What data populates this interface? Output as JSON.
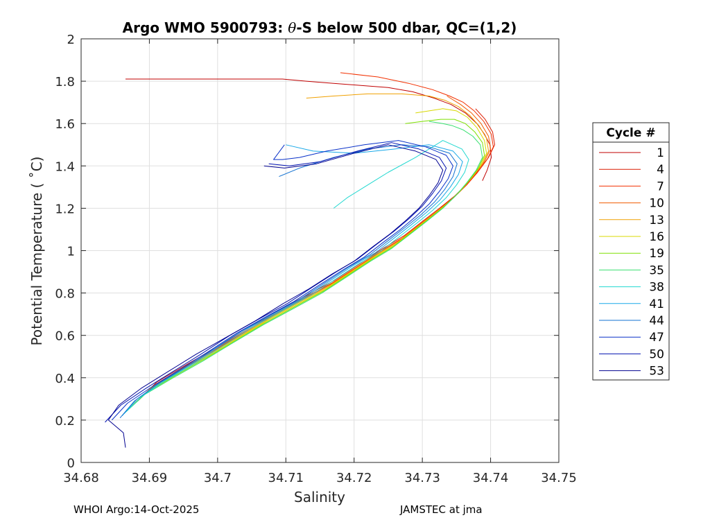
{
  "chart_data": {
    "type": "line",
    "title_prefix": "Argo WMO 5900793: ",
    "title_theta": "θ",
    "title_suffix": "-S below 500 dbar,  QC=(1,2)",
    "xlabel": "Salinity",
    "ylabel": "Potential Temperature ( ˚C)",
    "xlim": [
      34.68,
      34.75
    ],
    "ylim": [
      0,
      2
    ],
    "xticks": [
      34.68,
      34.69,
      34.7,
      34.71,
      34.72,
      34.73,
      34.74,
      34.75
    ],
    "xtick_labels": [
      "34.68",
      "34.69",
      "34.7",
      "34.71",
      "34.72",
      "34.73",
      "34.74",
      "34.75"
    ],
    "yticks": [
      0,
      0.2,
      0.4,
      0.6,
      0.8,
      1,
      1.2,
      1.4,
      1.6,
      1.8,
      2
    ],
    "ytick_labels": [
      "0",
      "0.2",
      "0.4",
      "0.6",
      "0.8",
      "1",
      "1.2",
      "1.4",
      "1.6",
      "1.8",
      "2"
    ],
    "grid": true,
    "legend": {
      "title": "Cycle #",
      "placement": "right-outside",
      "entries": [
        {
          "label": "1",
          "color": "#c00000"
        },
        {
          "label": "4",
          "color": "#dc1a00"
        },
        {
          "label": "7",
          "color": "#f23000"
        },
        {
          "label": "10",
          "color": "#f05a00"
        },
        {
          "label": "13",
          "color": "#f0a000"
        },
        {
          "label": "16",
          "color": "#d8d800"
        },
        {
          "label": "19",
          "color": "#7ee000"
        },
        {
          "label": "35",
          "color": "#38e070"
        },
        {
          "label": "38",
          "color": "#20d8d0"
        },
        {
          "label": "41",
          "color": "#18a8e8"
        },
        {
          "label": "44",
          "color": "#1070d0"
        },
        {
          "label": "47",
          "color": "#0830c8"
        },
        {
          "label": "50",
          "color": "#0010b0"
        },
        {
          "label": "53",
          "color": "#000090"
        }
      ]
    },
    "series": [
      {
        "name": "1",
        "color": "#c00000",
        "x": [
          34.7388,
          34.7395,
          34.7401,
          34.7399,
          34.7391,
          34.738,
          34.7363,
          34.7342,
          34.7317,
          34.7286,
          34.725,
          34.721,
          34.717,
          34.713,
          34.7095,
          34.7065,
          34.7038,
          34.701,
          34.6978,
          34.6945,
          34.6915,
          34.6888,
          34.6865
        ],
        "y": [
          1.33,
          1.38,
          1.44,
          1.5,
          1.55,
          1.6,
          1.65,
          1.69,
          1.72,
          1.75,
          1.77,
          1.78,
          1.79,
          1.8,
          1.81,
          1.81,
          1.81,
          1.81,
          1.81,
          1.81,
          1.81,
          1.81,
          1.81
        ]
      },
      {
        "name": "4",
        "color": "#dc1a00",
        "x": [
          34.6886,
          34.6911,
          34.6953,
          34.6997,
          34.7038,
          34.7085,
          34.7131,
          34.7171,
          34.7209,
          34.7242,
          34.7273,
          34.7301,
          34.7325,
          34.7348,
          34.7367,
          34.7383,
          34.7397,
          34.7406,
          34.7403,
          34.7392,
          34.7378
        ],
        "y": [
          0.3,
          0.38,
          0.46,
          0.54,
          0.62,
          0.71,
          0.79,
          0.86,
          0.94,
          1.01,
          1.07,
          1.14,
          1.2,
          1.26,
          1.32,
          1.38,
          1.44,
          1.5,
          1.56,
          1.62,
          1.67
        ]
      },
      {
        "name": "7",
        "color": "#f23000",
        "x": [
          34.6883,
          34.6909,
          34.6951,
          34.6995,
          34.7036,
          34.7083,
          34.7129,
          34.7169,
          34.7207,
          34.724,
          34.7271,
          34.7299,
          34.7323,
          34.7346,
          34.7365,
          34.7381,
          34.7395,
          34.7404,
          34.7401,
          34.739,
          34.7376,
          34.736,
          34.734,
          34.7315,
          34.728,
          34.7235,
          34.718
        ],
        "y": [
          0.29,
          0.37,
          0.45,
          0.53,
          0.61,
          0.7,
          0.78,
          0.85,
          0.93,
          1,
          1.06,
          1.13,
          1.19,
          1.25,
          1.31,
          1.37,
          1.43,
          1.49,
          1.55,
          1.61,
          1.66,
          1.7,
          1.73,
          1.76,
          1.79,
          1.82,
          1.84
        ]
      },
      {
        "name": "10",
        "color": "#f05a00",
        "x": [
          34.6878,
          34.6905,
          34.6947,
          34.6991,
          34.7032,
          34.7079,
          34.7125,
          34.7165,
          34.7203,
          34.7236,
          34.7267,
          34.7295,
          34.7319,
          34.7342,
          34.7361,
          34.7377,
          34.7391,
          34.74,
          34.7397,
          34.7386,
          34.7372,
          34.7356,
          34.7336
        ],
        "y": [
          0.28,
          0.36,
          0.44,
          0.52,
          0.6,
          0.69,
          0.77,
          0.84,
          0.92,
          0.99,
          1.05,
          1.12,
          1.18,
          1.24,
          1.3,
          1.36,
          1.42,
          1.48,
          1.54,
          1.6,
          1.65,
          1.69,
          1.73
        ]
      },
      {
        "name": "13",
        "color": "#f0a000",
        "x": [
          34.6875,
          34.6902,
          34.6944,
          34.6988,
          34.7029,
          34.7076,
          34.7122,
          34.7162,
          34.72,
          34.7233,
          34.7264,
          34.7292,
          34.7316,
          34.7339,
          34.7358,
          34.7374,
          34.7388,
          34.7397,
          34.7394,
          34.7383,
          34.7369,
          34.7353,
          34.7333,
          34.731,
          34.727,
          34.722,
          34.717,
          34.713
        ],
        "y": [
          0.27,
          0.35,
          0.43,
          0.51,
          0.59,
          0.68,
          0.76,
          0.83,
          0.91,
          0.98,
          1.04,
          1.11,
          1.17,
          1.23,
          1.29,
          1.35,
          1.41,
          1.47,
          1.53,
          1.59,
          1.64,
          1.68,
          1.71,
          1.73,
          1.74,
          1.74,
          1.73,
          1.72
        ]
      },
      {
        "name": "16",
        "color": "#d8d800",
        "x": [
          34.6872,
          34.6899,
          34.6941,
          34.6985,
          34.7026,
          34.7073,
          34.7119,
          34.7159,
          34.7197,
          34.723,
          34.7261,
          34.7289,
          34.7313,
          34.7336,
          34.7355,
          34.7371,
          34.7385,
          34.7394,
          34.7391,
          34.738,
          34.7366,
          34.735,
          34.733,
          34.731,
          34.729
        ],
        "y": [
          0.26,
          0.34,
          0.42,
          0.5,
          0.58,
          0.67,
          0.75,
          0.82,
          0.9,
          0.97,
          1.03,
          1.1,
          1.16,
          1.22,
          1.28,
          1.34,
          1.4,
          1.46,
          1.52,
          1.58,
          1.63,
          1.66,
          1.67,
          1.66,
          1.65
        ]
      },
      {
        "name": "19",
        "color": "#7ee000",
        "x": [
          34.6869,
          34.6896,
          34.6938,
          34.6982,
          34.7023,
          34.707,
          34.7116,
          34.7156,
          34.7194,
          34.7227,
          34.7258,
          34.7286,
          34.731,
          34.7333,
          34.7352,
          34.7368,
          34.7382,
          34.7391,
          34.7388,
          34.7377,
          34.7363,
          34.7347,
          34.7327,
          34.73,
          34.7275
        ],
        "y": [
          0.25,
          0.33,
          0.41,
          0.49,
          0.57,
          0.66,
          0.74,
          0.81,
          0.89,
          0.96,
          1.02,
          1.09,
          1.15,
          1.21,
          1.27,
          1.33,
          1.39,
          1.45,
          1.51,
          1.56,
          1.6,
          1.62,
          1.62,
          1.61,
          1.6
        ]
      },
      {
        "name": "35",
        "color": "#38e070",
        "x": [
          34.6866,
          34.6893,
          34.6935,
          34.6979,
          34.702,
          34.7067,
          34.7113,
          34.7153,
          34.7191,
          34.7224,
          34.7255,
          34.7283,
          34.7307,
          34.733,
          34.7349,
          34.7365,
          34.7379,
          34.7388,
          34.7385,
          34.7374,
          34.736,
          34.7344,
          34.733,
          34.731
        ],
        "y": [
          0.24,
          0.32,
          0.4,
          0.48,
          0.56,
          0.65,
          0.73,
          0.8,
          0.88,
          0.95,
          1.01,
          1.08,
          1.14,
          1.2,
          1.26,
          1.32,
          1.38,
          1.44,
          1.5,
          1.54,
          1.57,
          1.59,
          1.6,
          1.61
        ]
      },
      {
        "name": "38",
        "color": "#20d8d0",
        "x": [
          34.6863,
          34.6888,
          34.6925,
          34.6968,
          34.7008,
          34.7052,
          34.7097,
          34.7137,
          34.7175,
          34.7208,
          34.724,
          34.7268,
          34.7292,
          34.7315,
          34.7335,
          34.735,
          34.7362,
          34.7368,
          34.7358,
          34.733,
          34.729,
          34.725,
          34.7215,
          34.719,
          34.717
        ],
        "y": [
          0.23,
          0.31,
          0.39,
          0.47,
          0.55,
          0.64,
          0.72,
          0.79,
          0.87,
          0.94,
          1,
          1.07,
          1.13,
          1.19,
          1.25,
          1.31,
          1.37,
          1.43,
          1.48,
          1.52,
          1.44,
          1.37,
          1.3,
          1.25,
          1.2
        ]
      },
      {
        "name": "41",
        "color": "#18a8e8",
        "x": [
          34.686,
          34.6882,
          34.6918,
          34.696,
          34.6999,
          34.7043,
          34.7088,
          34.7128,
          34.7166,
          34.7199,
          34.7231,
          34.7259,
          34.7283,
          34.7306,
          34.7326,
          34.7341,
          34.7353,
          34.7359,
          34.7345,
          34.731,
          34.726,
          34.72,
          34.714,
          34.71
        ],
        "y": [
          0.22,
          0.3,
          0.38,
          0.46,
          0.54,
          0.63,
          0.71,
          0.78,
          0.86,
          0.93,
          0.99,
          1.06,
          1.12,
          1.18,
          1.24,
          1.3,
          1.36,
          1.42,
          1.47,
          1.5,
          1.48,
          1.46,
          1.47,
          1.5
        ]
      },
      {
        "name": "44",
        "color": "#1070d0",
        "x": [
          34.6857,
          34.6878,
          34.6912,
          34.6953,
          34.6992,
          34.7035,
          34.708,
          34.712,
          34.7158,
          34.7191,
          34.7223,
          34.7251,
          34.7275,
          34.7298,
          34.7318,
          34.7333,
          34.7345,
          34.7351,
          34.734,
          34.731,
          34.727,
          34.722,
          34.717,
          34.712,
          34.709
        ],
        "y": [
          0.21,
          0.29,
          0.37,
          0.45,
          0.53,
          0.62,
          0.7,
          0.77,
          0.85,
          0.92,
          0.98,
          1.05,
          1.11,
          1.17,
          1.23,
          1.29,
          1.35,
          1.41,
          1.46,
          1.49,
          1.5,
          1.48,
          1.44,
          1.39,
          1.35
        ]
      },
      {
        "name": "47",
        "color": "#0830c8",
        "x": [
          34.6845,
          34.6868,
          34.6905,
          34.6945,
          34.6985,
          34.7028,
          34.7072,
          34.7112,
          34.715,
          34.7184,
          34.7215,
          34.7243,
          34.7268,
          34.729,
          34.731,
          34.7325,
          34.7338,
          34.7345,
          34.7335,
          34.7305,
          34.7265,
          34.7215,
          34.716,
          34.712,
          34.7095,
          34.7082,
          34.7098
        ],
        "y": [
          0.2,
          0.28,
          0.36,
          0.44,
          0.52,
          0.61,
          0.69,
          0.76,
          0.84,
          0.91,
          0.97,
          1.04,
          1.1,
          1.16,
          1.22,
          1.28,
          1.34,
          1.4,
          1.45,
          1.49,
          1.52,
          1.5,
          1.47,
          1.44,
          1.43,
          1.43,
          1.5
        ]
      },
      {
        "name": "50",
        "color": "#0010b0",
        "x": [
          34.6835,
          34.6858,
          34.6895,
          34.6935,
          34.6975,
          34.7018,
          34.7062,
          34.7102,
          34.714,
          34.7174,
          34.7205,
          34.7233,
          34.7258,
          34.728,
          34.73,
          34.7315,
          34.7328,
          34.7335,
          34.7325,
          34.7295,
          34.7255,
          34.7205,
          34.715,
          34.7105,
          34.7075
        ],
        "y": [
          0.19,
          0.27,
          0.35,
          0.43,
          0.51,
          0.6,
          0.68,
          0.75,
          0.83,
          0.9,
          0.96,
          1.03,
          1.09,
          1.15,
          1.21,
          1.27,
          1.33,
          1.39,
          1.44,
          1.48,
          1.51,
          1.47,
          1.42,
          1.4,
          1.41
        ]
      },
      {
        "name": "53",
        "color": "#000090",
        "x": [
          34.6865,
          34.6862,
          34.684,
          34.6855,
          34.6888,
          34.6928,
          34.6968,
          34.7012,
          34.7056,
          34.7096,
          34.7134,
          34.7168,
          34.72,
          34.7228,
          34.7253,
          34.7275,
          34.7295,
          34.731,
          34.7323,
          34.733,
          34.732,
          34.729,
          34.725,
          34.72,
          34.7145,
          34.7098,
          34.7068
        ],
        "y": [
          0.07,
          0.14,
          0.2,
          0.27,
          0.35,
          0.43,
          0.51,
          0.59,
          0.67,
          0.75,
          0.82,
          0.89,
          0.95,
          1.02,
          1.08,
          1.14,
          1.2,
          1.26,
          1.32,
          1.38,
          1.43,
          1.47,
          1.5,
          1.46,
          1.41,
          1.39,
          1.4
        ]
      }
    ]
  },
  "footer": {
    "left": "WHOI Argo:14-Oct-2025",
    "right": "JAMSTEC at jma"
  }
}
